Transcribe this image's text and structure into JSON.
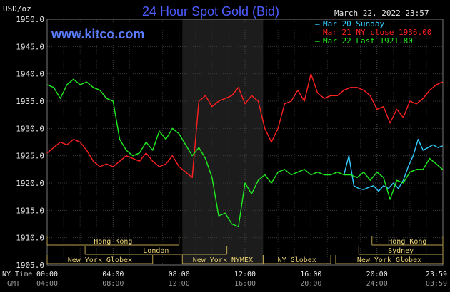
{
  "header": {
    "unit": "USD/oz",
    "title": "24 Hour Spot Gold (Bid)",
    "timestamp": "March 22, 2022 23:57",
    "site": "www.kitco.com"
  },
  "legend": [
    {
      "label": "Mar 20 Sunday",
      "color": "#33ccff"
    },
    {
      "label": "Mar 21 NY close 1936.00",
      "color": "#ff2020"
    },
    {
      "label": "Mar 22 Last 1921.80",
      "color": "#20ee20"
    }
  ],
  "markets": [
    {
      "label": "Hong Kong",
      "start": 0.0,
      "end": 8.0,
      "row": 0
    },
    {
      "label": "London",
      "start": 2.3,
      "end": 10.9,
      "row": 1
    },
    {
      "label": "New York Globex",
      "start": 0.0,
      "end": 6.4,
      "row": 2
    },
    {
      "label": "New York NYMEX",
      "start": 8.2,
      "end": 13.1,
      "row": 2
    },
    {
      "label": "NY Globex",
      "start": 13.1,
      "end": 17.2,
      "row": 2
    },
    {
      "label": "Hong Kong",
      "start": 19.7,
      "end": 24.0,
      "row": 0
    },
    {
      "label": "Sydney",
      "start": 18.9,
      "end": 24.0,
      "row": 1
    },
    {
      "label": "New York Globex",
      "start": 17.5,
      "end": 24.0,
      "row": 2
    }
  ],
  "time_row_labels": {
    "primary": "NY Time",
    "secondary": "GMT"
  },
  "chart_data": {
    "type": "line",
    "title": "24 Hour Spot Gold (Bid)",
    "ylabel": "USD/oz",
    "ylim": [
      1905.0,
      1950.0
    ],
    "yticks": [
      "1905.0",
      "1910.0",
      "1915.0",
      "1920.0",
      "1925.0",
      "1930.0",
      "1935.0",
      "1940.0",
      "1945.0",
      "1950.0"
    ],
    "xlim": [
      0,
      24
    ],
    "xticks": [
      {
        "label": "00:00",
        "gmt": "04:00"
      },
      {
        "label": "04:00",
        "gmt": "08:00"
      },
      {
        "label": "08:00",
        "gmt": "12:00"
      },
      {
        "label": "12:00",
        "gmt": "16:00"
      },
      {
        "label": "16:00",
        "gmt": "20:00"
      },
      {
        "label": "20:00",
        "gmt": "24:00"
      },
      {
        "label": "23:59",
        "gmt": "03:59"
      }
    ],
    "highlight_band": [
      8.2,
      13.1
    ],
    "grid": true,
    "series": [
      {
        "name": "Mar 20 Sunday",
        "color": "#33ccff",
        "x": [
          18.0,
          18.3,
          18.6,
          18.9,
          19.2,
          19.5,
          19.8,
          20.1,
          20.4,
          20.7,
          21.0,
          21.3,
          21.6,
          21.9,
          22.2,
          22.5,
          22.8,
          23.1,
          23.4,
          23.7,
          23.98
        ],
        "y": [
          1921.5,
          1925.0,
          1919.5,
          1919.0,
          1918.8,
          1919.2,
          1919.5,
          1918.5,
          1919.5,
          1919.0,
          1920.0,
          1919.0,
          1920.5,
          1923.0,
          1925.0,
          1928.0,
          1926.0,
          1926.5,
          1927.0,
          1926.5,
          1926.8
        ]
      },
      {
        "name": "Mar 21 NY close 1936.00",
        "color": "#ff2020",
        "x": [
          0,
          0.4,
          0.8,
          1.2,
          1.6,
          2.0,
          2.4,
          2.8,
          3.2,
          3.6,
          4.0,
          4.4,
          4.8,
          5.2,
          5.6,
          6.0,
          6.4,
          6.8,
          7.2,
          7.6,
          8.0,
          8.4,
          8.8,
          9.2,
          9.6,
          10.0,
          10.4,
          10.8,
          11.2,
          11.6,
          12.0,
          12.4,
          12.8,
          13.2,
          13.6,
          14.0,
          14.4,
          14.8,
          15.2,
          15.6,
          16.0,
          16.4,
          16.8,
          17.2,
          17.6,
          18.0,
          18.4,
          18.8,
          19.2,
          19.6,
          20.0,
          20.4,
          20.8,
          21.2,
          21.6,
          22.0,
          22.4,
          22.8,
          23.2,
          23.6,
          23.98
        ],
        "y": [
          1925.5,
          1926.5,
          1927.5,
          1927.0,
          1928.0,
          1927.5,
          1926.0,
          1924.0,
          1923.0,
          1923.5,
          1923.0,
          1924.0,
          1925.0,
          1924.5,
          1924.0,
          1925.5,
          1924.0,
          1923.0,
          1923.5,
          1925.0,
          1923.0,
          1922.0,
          1921.0,
          1935.0,
          1936.0,
          1934.0,
          1935.0,
          1935.5,
          1936.0,
          1937.5,
          1934.5,
          1936.0,
          1935.0,
          1930.0,
          1927.5,
          1930.0,
          1934.5,
          1935.0,
          1937.0,
          1935.0,
          1940.0,
          1936.5,
          1935.5,
          1936.0,
          1936.0,
          1937.0,
          1937.5,
          1937.5,
          1937.0,
          1936.0,
          1933.5,
          1934.0,
          1931.0,
          1933.5,
          1932.0,
          1935.0,
          1934.5,
          1935.5,
          1937.0,
          1938.0,
          1938.5
        ]
      },
      {
        "name": "Mar 22 Last 1921.80",
        "color": "#20ee20",
        "x": [
          0,
          0.4,
          0.8,
          1.2,
          1.6,
          2.0,
          2.4,
          2.8,
          3.2,
          3.6,
          4.0,
          4.4,
          4.8,
          5.2,
          5.6,
          6.0,
          6.4,
          6.8,
          7.2,
          7.6,
          8.0,
          8.4,
          8.8,
          9.2,
          9.6,
          10.0,
          10.4,
          10.8,
          11.2,
          11.6,
          12.0,
          12.4,
          12.8,
          13.2,
          13.6,
          14.0,
          14.4,
          14.8,
          15.2,
          15.6,
          16.0,
          16.4,
          16.8,
          17.2,
          17.6,
          18.0,
          18.4,
          18.8,
          19.2,
          19.6,
          20.0,
          20.4,
          20.8,
          21.2,
          21.6,
          22.0,
          22.4,
          22.8,
          23.2,
          23.6,
          23.98
        ],
        "y": [
          1938.0,
          1937.5,
          1935.5,
          1938.0,
          1939.0,
          1938.0,
          1938.5,
          1937.5,
          1937.0,
          1935.5,
          1935.0,
          1928.0,
          1926.0,
          1925.0,
          1925.5,
          1927.5,
          1926.0,
          1929.5,
          1928.0,
          1930.0,
          1929.0,
          1927.0,
          1925.0,
          1926.5,
          1924.5,
          1921.0,
          1914.0,
          1914.5,
          1912.5,
          1912.0,
          1920.0,
          1918.0,
          1920.5,
          1921.5,
          1920.0,
          1922.0,
          1922.5,
          1921.5,
          1922.0,
          1922.5,
          1921.5,
          1922.0,
          1921.5,
          1921.5,
          1922.0,
          1921.5,
          1921.5,
          1921.0,
          1922.0,
          1920.5,
          1922.0,
          1921.0,
          1917.0,
          1920.5,
          1920.0,
          1922.0,
          1922.5,
          1922.5,
          1924.5,
          1923.5,
          1922.5
        ]
      }
    ]
  }
}
